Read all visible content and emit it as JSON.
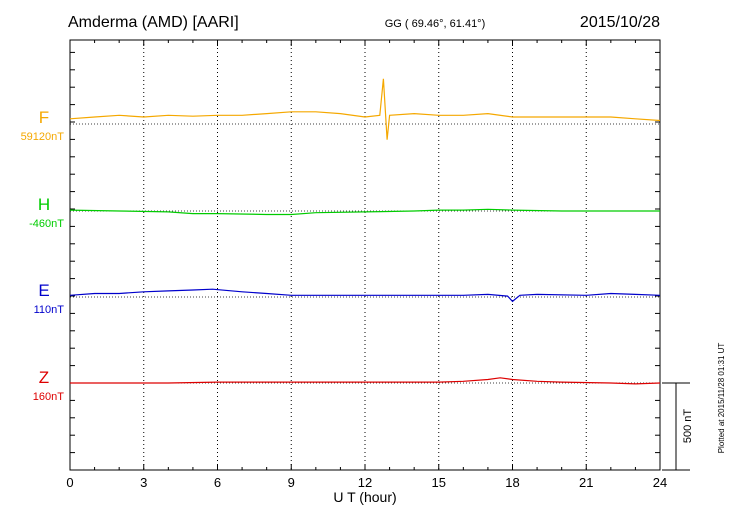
{
  "header": {
    "station": "Amderma (AMD)  [AARI]",
    "coords": "GG ( 69.46°,  61.41°)",
    "date": "2015/10/28"
  },
  "plotted_note": "Plotted at 2015/11/28 01:31  UT",
  "scale_label": "500 nT",
  "colors": {
    "F": "#f5a800",
    "H": "#00cc00",
    "E": "#0000cc",
    "Z": "#dd0000",
    "axis": "#000000"
  },
  "chart_data": {
    "type": "line",
    "xlabel": "U T (hour)",
    "xlim": [
      0,
      24
    ],
    "xticks": [
      0,
      3,
      6,
      9,
      12,
      15,
      18,
      21,
      24
    ],
    "x_tick_labels": [
      "0",
      "3",
      "6",
      "9",
      "12",
      "15",
      "18",
      "21",
      "24"
    ],
    "grid": "dotted vertical lines every 3 hours",
    "y_span_nT": 2000,
    "scale_bar_nT": 500,
    "series": [
      {
        "name": "F",
        "baseline_label": "59120nT",
        "color": "#f5a800",
        "baseline_nT": 59120,
        "x": [
          0,
          1,
          2,
          3,
          4,
          5,
          6,
          7,
          8,
          9,
          10,
          11,
          12,
          12.6,
          12.75,
          12.9,
          13,
          14,
          15,
          16,
          17,
          18,
          19,
          20,
          21,
          22,
          23,
          24
        ],
        "offset_nT": [
          30,
          40,
          50,
          40,
          50,
          45,
          50,
          50,
          60,
          70,
          70,
          60,
          40,
          50,
          260,
          -90,
          50,
          60,
          50,
          50,
          60,
          40,
          40,
          40,
          40,
          40,
          30,
          20
        ]
      },
      {
        "name": "H",
        "baseline_label": "-460nT",
        "color": "#00cc00",
        "baseline_nT": -460,
        "x": [
          0,
          2,
          4,
          5,
          6,
          8,
          9,
          10,
          12,
          14,
          15,
          16,
          17,
          18,
          20,
          22,
          24
        ],
        "offset_nT": [
          5,
          0,
          -5,
          -15,
          -15,
          -20,
          -20,
          -10,
          -5,
          0,
          5,
          5,
          10,
          5,
          0,
          0,
          0
        ]
      },
      {
        "name": "E",
        "baseline_label": "110nT",
        "color": "#0000cc",
        "baseline_nT": 110,
        "x": [
          0,
          1,
          2,
          3,
          4,
          5,
          5.8,
          7,
          8,
          9,
          11,
          13,
          15,
          16,
          17,
          17.8,
          18,
          18.3,
          19,
          21,
          22,
          23,
          24
        ],
        "offset_nT": [
          10,
          20,
          20,
          30,
          35,
          40,
          45,
          30,
          20,
          10,
          10,
          10,
          10,
          10,
          15,
          5,
          -25,
          10,
          15,
          10,
          20,
          15,
          10
        ]
      },
      {
        "name": "Z",
        "baseline_label": "160nT",
        "color": "#dd0000",
        "baseline_nT": 160,
        "x": [
          0,
          2,
          4,
          6,
          8,
          10,
          12,
          14,
          15,
          16,
          17,
          17.5,
          18,
          19,
          20,
          22,
          23,
          24
        ],
        "offset_nT": [
          0,
          0,
          0,
          5,
          5,
          5,
          5,
          5,
          5,
          10,
          20,
          30,
          20,
          10,
          5,
          0,
          -5,
          0
        ]
      }
    ]
  }
}
